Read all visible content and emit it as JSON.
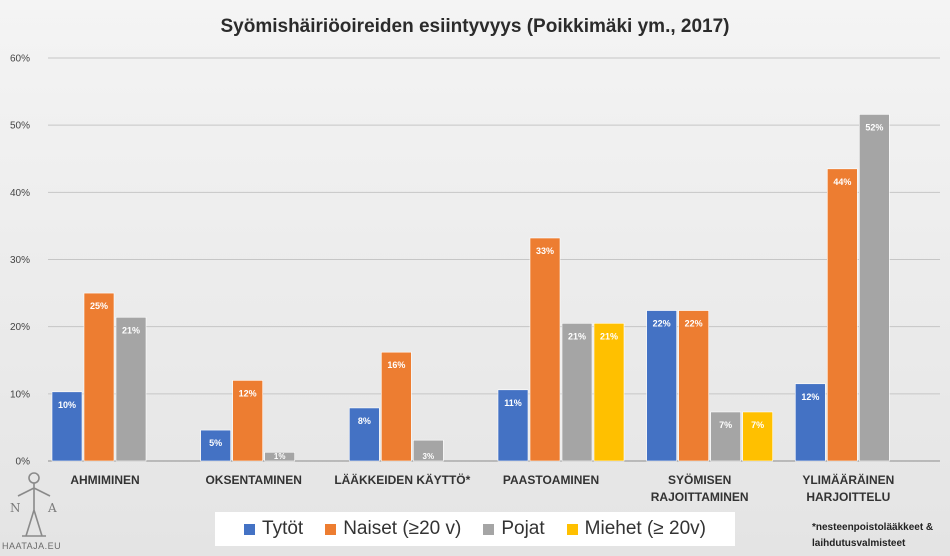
{
  "chart_data": {
    "type": "bar",
    "title": "Syömishäiriöoireiden esiintyvyys (Poikkimäki ym., 2017)",
    "xlabel": "",
    "ylabel": "",
    "ylim": [
      0,
      60
    ],
    "y_ticks": [
      "0%",
      "10%",
      "20%",
      "30%",
      "40%",
      "50%",
      "60%"
    ],
    "grid": true,
    "legend_position": "bottom",
    "categories": [
      [
        "AHMIMINEN"
      ],
      [
        "OKSENTAMINEN"
      ],
      [
        "LÄÄKKEIDEN KÄYTTÖ*"
      ],
      [
        "PAASTOAMINEN"
      ],
      [
        "SYÖMISEN",
        "RAJOITTAMINEN"
      ],
      [
        "YLIMÄÄRÄINEN",
        "HARJOITTELU"
      ]
    ],
    "series": [
      {
        "name": "Tytöt",
        "color": "#4472c4",
        "values": [
          10.3,
          4.6,
          7.9,
          10.6,
          22.4,
          11.5
        ],
        "labels": [
          "10%",
          "5%",
          "8%",
          "11%",
          "22%",
          "12%"
        ]
      },
      {
        "name": "Naiset (≥20 v)",
        "color": "#ed7d31",
        "values": [
          25,
          12,
          16.2,
          33.2,
          22.4,
          43.5
        ],
        "labels": [
          "25%",
          "12%",
          "16%",
          "33%",
          "22%",
          "44%"
        ]
      },
      {
        "name": "Pojat",
        "color": "#a5a5a5",
        "values": [
          21.4,
          1.3,
          3.1,
          20.5,
          7.3,
          51.6
        ],
        "labels": [
          "21%",
          "1%",
          "3%",
          "21%",
          "7%",
          "52%"
        ]
      },
      {
        "name": "Miehet (≥ 20v)",
        "color": "#ffc000",
        "values": [
          null,
          null,
          null,
          20.5,
          7.3,
          null
        ],
        "labels": [
          null,
          null,
          null,
          "21%",
          "7%",
          null
        ]
      }
    ]
  },
  "footnote": {
    "line1": "*nesteenpoistolääkkeet &",
    "line2": "laihdutusvalmisteet"
  },
  "logo": {
    "letters": [
      "N",
      "A"
    ],
    "text": "HAATAJA.EU"
  }
}
